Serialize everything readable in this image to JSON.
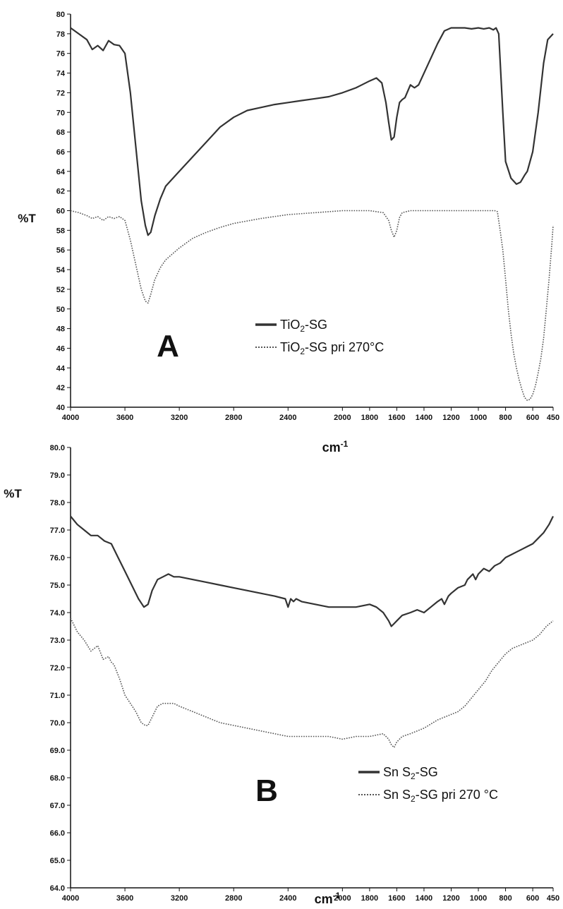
{
  "chart_data": [
    {
      "type": "line",
      "panel_label": "A",
      "ylabel": "%T",
      "xlabel": "cm",
      "xlabel_sup": "-1",
      "xlim": [
        4000,
        450
      ],
      "ylim": [
        40,
        80
      ],
      "x_ticks": [
        "4000",
        "3600",
        "3200",
        "2800",
        "2400",
        "2000",
        "1800",
        "1600",
        "1400",
        "1200",
        "1000",
        "800",
        "600",
        "450"
      ],
      "y_ticks": [
        "40",
        "42",
        "44",
        "46",
        "48",
        "50",
        "52",
        "54",
        "56",
        "58",
        "60",
        "62",
        "64",
        "66",
        "68",
        "70",
        "72",
        "74",
        "76",
        "78",
        "80"
      ],
      "grid": false,
      "legend_position": "center-right",
      "series": [
        {
          "name": "TiO2-SG",
          "legend": {
            "main": "TiO",
            "sub": "2",
            "rest": "-SG"
          },
          "style": "solid",
          "x": [
            4000,
            3940,
            3880,
            3840,
            3800,
            3760,
            3720,
            3680,
            3640,
            3600,
            3560,
            3520,
            3480,
            3450,
            3430,
            3410,
            3380,
            3340,
            3300,
            3200,
            3100,
            3000,
            2900,
            2800,
            2700,
            2600,
            2500,
            2400,
            2300,
            2200,
            2100,
            2000,
            1900,
            1800,
            1750,
            1710,
            1680,
            1660,
            1640,
            1620,
            1600,
            1580,
            1560,
            1540,
            1500,
            1470,
            1440,
            1400,
            1350,
            1300,
            1250,
            1200,
            1150,
            1100,
            1050,
            1000,
            960,
            920,
            890,
            870,
            850,
            820,
            800,
            760,
            720,
            690,
            660,
            640,
            600,
            560,
            520,
            490,
            450
          ],
          "y": [
            78.6,
            78.0,
            77.4,
            76.4,
            76.8,
            76.3,
            77.3,
            76.9,
            76.8,
            76.0,
            72.0,
            66.5,
            61.0,
            58.5,
            57.5,
            57.8,
            59.5,
            61.2,
            62.5,
            64.0,
            65.5,
            67.0,
            68.5,
            69.5,
            70.2,
            70.5,
            70.8,
            71.0,
            71.2,
            71.4,
            71.6,
            72.0,
            72.5,
            73.2,
            73.5,
            73.0,
            71.0,
            69.0,
            67.2,
            67.5,
            69.5,
            71.0,
            71.3,
            71.5,
            72.8,
            72.5,
            72.8,
            74.0,
            75.5,
            77.0,
            78.3,
            78.6,
            78.6,
            78.6,
            78.5,
            78.6,
            78.5,
            78.6,
            78.4,
            78.6,
            78.0,
            70.0,
            65.0,
            63.3,
            62.7,
            62.9,
            63.6,
            64.0,
            66.0,
            70.0,
            75.0,
            77.4,
            78.0
          ]
        },
        {
          "name": "TiO2-SG pri 270°C",
          "legend": {
            "main": "TiO",
            "sub": "2",
            "rest": "-SG  pri 270°C"
          },
          "style": "dotted",
          "x": [
            4000,
            3940,
            3880,
            3840,
            3800,
            3760,
            3720,
            3680,
            3640,
            3600,
            3560,
            3520,
            3480,
            3450,
            3430,
            3410,
            3380,
            3340,
            3300,
            3200,
            3100,
            3000,
            2900,
            2800,
            2600,
            2400,
            2200,
            2000,
            1800,
            1700,
            1660,
            1640,
            1620,
            1600,
            1580,
            1560,
            1500,
            1400,
            1200,
            1000,
            880,
            860,
            840,
            820,
            800,
            780,
            760,
            740,
            720,
            700,
            680,
            660,
            640,
            620,
            600,
            580,
            560,
            540,
            520,
            500,
            480,
            460,
            450
          ],
          "y": [
            60.0,
            59.8,
            59.5,
            59.2,
            59.4,
            59.0,
            59.4,
            59.2,
            59.4,
            59.0,
            57.0,
            54.5,
            52.0,
            50.8,
            50.6,
            51.5,
            53.0,
            54.2,
            55.0,
            56.2,
            57.2,
            57.8,
            58.3,
            58.7,
            59.2,
            59.6,
            59.8,
            60.0,
            60.0,
            59.8,
            59.0,
            58.0,
            57.3,
            58.0,
            59.3,
            59.8,
            60.0,
            60.0,
            60.0,
            60.0,
            60.0,
            59.9,
            58.0,
            56.0,
            53.0,
            50.0,
            47.5,
            45.5,
            44.0,
            42.8,
            41.8,
            41.0,
            40.7,
            40.8,
            41.3,
            42.2,
            43.5,
            45.0,
            47.0,
            50.0,
            53.0,
            56.5,
            58.5
          ]
        }
      ]
    },
    {
      "type": "line",
      "panel_label": "B",
      "ylabel": "%T",
      "xlabel": "cm",
      "xlabel_sup": "-1",
      "xlim": [
        4000,
        450
      ],
      "ylim": [
        64.0,
        80.0
      ],
      "x_ticks": [
        "4000",
        "3600",
        "3200",
        "2800",
        "2400",
        "2000",
        "1800",
        "1600",
        "1400",
        "1200",
        "1000",
        "800",
        "600",
        "450"
      ],
      "y_ticks": [
        "64.0",
        "65.0",
        "66.0",
        "67.0",
        "68.0",
        "69.0",
        "70.0",
        "71.0",
        "72.0",
        "73.0",
        "74.0",
        "75.0",
        "76.0",
        "77.0",
        "78.0",
        "79.0",
        "80.0"
      ],
      "grid": false,
      "legend_position": "center-right",
      "series": [
        {
          "name": "SnS2-SG",
          "legend": {
            "main": "Sn S",
            "sub": "2",
            "rest": "-SG"
          },
          "style": "solid",
          "x": [
            4000,
            3950,
            3900,
            3850,
            3800,
            3750,
            3700,
            3650,
            3600,
            3550,
            3500,
            3460,
            3430,
            3400,
            3360,
            3320,
            3280,
            3240,
            3200,
            3100,
            3000,
            2900,
            2800,
            2700,
            2600,
            2500,
            2420,
            2400,
            2380,
            2360,
            2340,
            2300,
            2200,
            2100,
            2000,
            1900,
            1800,
            1750,
            1700,
            1660,
            1640,
            1620,
            1600,
            1560,
            1500,
            1450,
            1400,
            1350,
            1300,
            1270,
            1250,
            1220,
            1200,
            1150,
            1100,
            1080,
            1060,
            1040,
            1020,
            1000,
            960,
            920,
            880,
            840,
            800,
            760,
            720,
            680,
            640,
            600,
            560,
            520,
            480,
            450
          ],
          "y": [
            77.5,
            77.2,
            77.0,
            76.8,
            76.8,
            76.6,
            76.5,
            76.0,
            75.5,
            75.0,
            74.5,
            74.2,
            74.3,
            74.8,
            75.2,
            75.3,
            75.4,
            75.3,
            75.3,
            75.2,
            75.1,
            75.0,
            74.9,
            74.8,
            74.7,
            74.6,
            74.5,
            74.2,
            74.5,
            74.4,
            74.5,
            74.4,
            74.3,
            74.2,
            74.2,
            74.2,
            74.3,
            74.2,
            74.0,
            73.7,
            73.5,
            73.6,
            73.7,
            73.9,
            74.0,
            74.1,
            74.0,
            74.2,
            74.4,
            74.5,
            74.3,
            74.6,
            74.7,
            74.9,
            75.0,
            75.2,
            75.3,
            75.4,
            75.2,
            75.4,
            75.6,
            75.5,
            75.7,
            75.8,
            76.0,
            76.1,
            76.2,
            76.3,
            76.4,
            76.5,
            76.7,
            76.9,
            77.2,
            77.5
          ]
        },
        {
          "name": "SnS2-SG pri 270 °C",
          "legend": {
            "main": "Sn S",
            "sub": "2",
            "rest": "-SG pri 270 °C"
          },
          "style": "dotted",
          "x": [
            4000,
            3950,
            3900,
            3850,
            3800,
            3760,
            3720,
            3700,
            3680,
            3640,
            3600,
            3560,
            3520,
            3480,
            3450,
            3430,
            3400,
            3360,
            3320,
            3280,
            3240,
            3200,
            3100,
            3000,
            2900,
            2800,
            2700,
            2600,
            2500,
            2400,
            2300,
            2200,
            2100,
            2000,
            1900,
            1800,
            1700,
            1660,
            1640,
            1620,
            1600,
            1560,
            1500,
            1400,
            1300,
            1200,
            1150,
            1100,
            1050,
            1000,
            950,
            900,
            850,
            800,
            750,
            700,
            650,
            600,
            550,
            500,
            450
          ],
          "y": [
            73.8,
            73.3,
            73.0,
            72.6,
            72.8,
            72.3,
            72.4,
            72.2,
            72.1,
            71.6,
            71.0,
            70.7,
            70.4,
            70.0,
            69.9,
            69.9,
            70.2,
            70.6,
            70.7,
            70.7,
            70.7,
            70.6,
            70.4,
            70.2,
            70.0,
            69.9,
            69.8,
            69.7,
            69.6,
            69.5,
            69.5,
            69.5,
            69.5,
            69.4,
            69.5,
            69.5,
            69.6,
            69.4,
            69.2,
            69.1,
            69.3,
            69.5,
            69.6,
            69.8,
            70.1,
            70.3,
            70.4,
            70.6,
            70.9,
            71.2,
            71.5,
            71.9,
            72.2,
            72.5,
            72.7,
            72.8,
            72.9,
            73.0,
            73.2,
            73.5,
            73.7
          ]
        }
      ]
    }
  ]
}
